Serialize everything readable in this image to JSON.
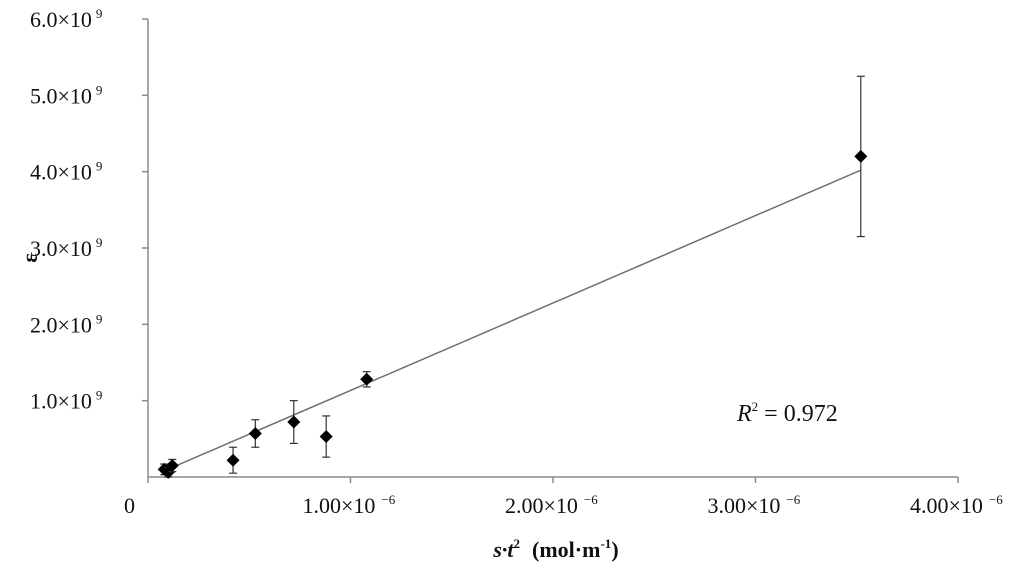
{
  "chart_data": {
    "type": "scatter",
    "title": "",
    "xlabel": {
      "prefix": "s·t",
      "sup": "2",
      "unit": "(mol·m",
      "unit_sup": "-1",
      "unit_close": ")"
    },
    "ylabel": "ε",
    "xlim": [
      0,
      4e-06
    ],
    "ylim": [
      0,
      6000000000.0
    ],
    "x_ticks": [
      {
        "value": 0,
        "mantissa": "0",
        "exp": ""
      },
      {
        "value": 1e-06,
        "mantissa": "1.00×10",
        "exp": "−6"
      },
      {
        "value": 2e-06,
        "mantissa": "2.00×10",
        "exp": "−6"
      },
      {
        "value": 3e-06,
        "mantissa": "3.00×10",
        "exp": "−6"
      },
      {
        "value": 4e-06,
        "mantissa": "4.00×10",
        "exp": "−6"
      }
    ],
    "y_ticks": [
      {
        "value": 1000000000.0,
        "mantissa": "1.0×10",
        "exp": "9"
      },
      {
        "value": 2000000000.0,
        "mantissa": "2.0×10",
        "exp": "9"
      },
      {
        "value": 3000000000.0,
        "mantissa": "3.0×10",
        "exp": "9"
      },
      {
        "value": 4000000000.0,
        "mantissa": "4.0×10",
        "exp": "9"
      },
      {
        "value": 5000000000.0,
        "mantissa": "5.0×10",
        "exp": "9"
      },
      {
        "value": 6000000000.0,
        "mantissa": "6.0×10",
        "exp": "9"
      }
    ],
    "points": [
      {
        "x": 8e-08,
        "y": 100000000.0,
        "err": 70000000.0
      },
      {
        "x": 1e-07,
        "y": 60000000.0,
        "err": 60000000.0
      },
      {
        "x": 1.2e-07,
        "y": 150000000.0,
        "err": 80000000.0
      },
      {
        "x": 4.2e-07,
        "y": 220000000.0,
        "err": 170000000.0
      },
      {
        "x": 5.3e-07,
        "y": 570000000.0,
        "err": 180000000.0
      },
      {
        "x": 7.2e-07,
        "y": 720000000.0,
        "err": 280000000.0
      },
      {
        "x": 8.8e-07,
        "y": 530000000.0,
        "err": 270000000.0
      },
      {
        "x": 1.08e-06,
        "y": 1280000000.0,
        "err": 100000000.0
      },
      {
        "x": 3.52e-06,
        "y": 4200000000.0,
        "err": 1050000000.0
      }
    ],
    "trendline": {
      "x": [
        8e-08,
        3.52e-06
      ],
      "y": [
        80000000.0,
        4020000000.0
      ]
    },
    "annotation": {
      "label": "R",
      "sup": "2",
      "value": " = 0.972"
    },
    "grid": false,
    "legend": "none"
  }
}
